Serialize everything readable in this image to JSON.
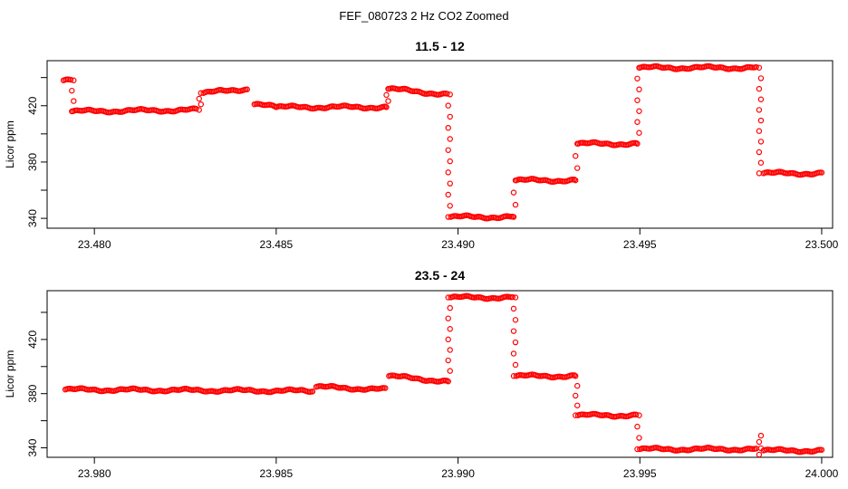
{
  "figure_title": "FEF_080723  2 Hz CO2 Zoomed",
  "chart_data": [
    {
      "type": "scatter",
      "title": "11.5 - 12",
      "xlabel": "",
      "ylabel": "Licor ppm",
      "xlim": [
        23.4787,
        23.5003
      ],
      "ylim": [
        333,
        452
      ],
      "xticks": [
        23.48,
        23.485,
        23.49,
        23.495,
        23.5
      ],
      "xtick_labels": [
        "23.480",
        "23.485",
        "23.490",
        "23.495",
        "23.500"
      ],
      "yticks": [
        340,
        360,
        380,
        400,
        420,
        440
      ],
      "ytick_labels": [
        "340",
        "",
        "380",
        "",
        "420",
        ""
      ],
      "marker_color": "#ff0000",
      "marker": "open-circle",
      "segments": [
        {
          "x": [
            23.47915,
            23.47935
          ],
          "y": [
            438,
            438
          ]
        },
        {
          "x": [
            23.4794,
            23.4828
          ],
          "y": [
            416,
            417
          ]
        },
        {
          "x": [
            23.483,
            23.4842
          ],
          "y": [
            429,
            432
          ]
        },
        {
          "x": [
            23.4844,
            23.485
          ],
          "y": [
            421,
            419
          ]
        },
        {
          "x": [
            23.485,
            23.488
          ],
          "y": [
            419,
            419
          ]
        },
        {
          "x": [
            23.4881,
            23.4897
          ],
          "y": [
            432,
            428
          ]
        },
        {
          "x": [
            23.4898,
            23.4915
          ],
          "y": [
            341,
            341
          ]
        },
        {
          "x": [
            23.4916,
            23.4932
          ],
          "y": [
            367,
            367
          ]
        },
        {
          "x": [
            23.4933,
            23.4949
          ],
          "y": [
            393,
            393
          ]
        },
        {
          "x": [
            23.495,
            23.4982
          ],
          "y": [
            447,
            447
          ]
        },
        {
          "x": [
            23.4984,
            23.5
          ],
          "y": [
            372,
            372
          ]
        }
      ],
      "transitions": [
        {
          "x": 23.4794,
          "y": [
            416,
            438
          ]
        },
        {
          "x": 23.4829,
          "y": [
            417,
            429
          ]
        },
        {
          "x": 23.48805,
          "y": [
            419,
            432
          ]
        },
        {
          "x": 23.48975,
          "y": [
            341,
            428
          ]
        },
        {
          "x": 23.49155,
          "y": [
            341,
            367
          ]
        },
        {
          "x": 23.49325,
          "y": [
            367,
            393
          ]
        },
        {
          "x": 23.49495,
          "y": [
            393,
            447
          ]
        },
        {
          "x": 23.4983,
          "y": [
            372,
            447
          ]
        }
      ]
    },
    {
      "type": "scatter",
      "title": "23.5 - 24",
      "xlabel": "",
      "ylabel": "Licor ppm",
      "xlim": [
        23.9787,
        24.0003
      ],
      "ylim": [
        333,
        456
      ],
      "xticks": [
        23.98,
        23.985,
        23.99,
        23.995,
        24.0
      ],
      "xtick_labels": [
        "23.980",
        "23.985",
        "23.990",
        "23.995",
        "24.000"
      ],
      "yticks": [
        340,
        360,
        380,
        400,
        420,
        440
      ],
      "ytick_labels": [
        "340",
        "",
        "380",
        "",
        "420",
        ""
      ],
      "marker_color": "#ff0000",
      "marker": "open-circle",
      "segments": [
        {
          "x": [
            23.9792,
            23.986
          ],
          "y": [
            383,
            382
          ]
        },
        {
          "x": [
            23.9861,
            23.988
          ],
          "y": [
            385,
            383
          ]
        },
        {
          "x": [
            23.9881,
            23.9897
          ],
          "y": [
            393,
            389
          ]
        },
        {
          "x": [
            23.9898,
            23.9915
          ],
          "y": [
            451,
            451
          ]
        },
        {
          "x": [
            23.9916,
            23.9932
          ],
          "y": [
            393,
            393
          ]
        },
        {
          "x": [
            23.9933,
            23.9949
          ],
          "y": [
            364,
            364
          ]
        },
        {
          "x": [
            23.995,
            23.9982
          ],
          "y": [
            339,
            339
          ]
        },
        {
          "x": [
            23.9984,
            24.0
          ],
          "y": [
            338,
            338
          ]
        }
      ],
      "transitions": [
        {
          "x": 23.98975,
          "y": [
            389,
            451
          ]
        },
        {
          "x": 23.99155,
          "y": [
            393,
            451
          ]
        },
        {
          "x": 23.99325,
          "y": [
            364,
            393
          ]
        },
        {
          "x": 23.99495,
          "y": [
            339,
            364
          ]
        },
        {
          "x": 23.9983,
          "y": [
            335,
            349
          ]
        }
      ]
    }
  ]
}
